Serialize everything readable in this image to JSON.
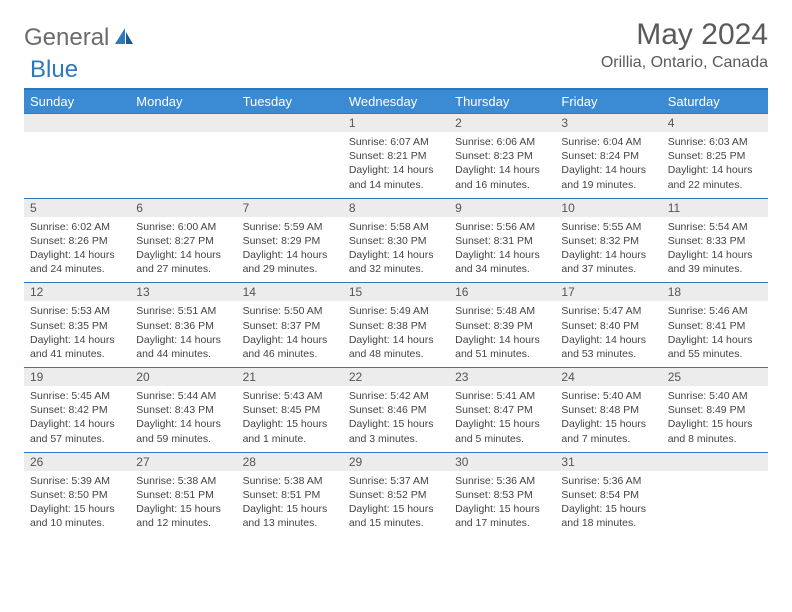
{
  "logo": {
    "part1": "General",
    "part2": "Blue"
  },
  "title": "May 2024",
  "location": "Orillia, Ontario, Canada",
  "colors": {
    "header_bg": "#3b8bd4",
    "border": "#2e78bd",
    "daynum_bg": "#ececec",
    "text": "#444444",
    "logo_gray": "#6b6b6b",
    "logo_blue": "#2e78bd"
  },
  "weekdays": [
    "Sunday",
    "Monday",
    "Tuesday",
    "Wednesday",
    "Thursday",
    "Friday",
    "Saturday"
  ],
  "weeks": [
    [
      {
        "day": "",
        "lines": []
      },
      {
        "day": "",
        "lines": []
      },
      {
        "day": "",
        "lines": []
      },
      {
        "day": "1",
        "lines": [
          "Sunrise: 6:07 AM",
          "Sunset: 8:21 PM",
          "Daylight: 14 hours",
          "and 14 minutes."
        ]
      },
      {
        "day": "2",
        "lines": [
          "Sunrise: 6:06 AM",
          "Sunset: 8:23 PM",
          "Daylight: 14 hours",
          "and 16 minutes."
        ]
      },
      {
        "day": "3",
        "lines": [
          "Sunrise: 6:04 AM",
          "Sunset: 8:24 PM",
          "Daylight: 14 hours",
          "and 19 minutes."
        ]
      },
      {
        "day": "4",
        "lines": [
          "Sunrise: 6:03 AM",
          "Sunset: 8:25 PM",
          "Daylight: 14 hours",
          "and 22 minutes."
        ]
      }
    ],
    [
      {
        "day": "5",
        "lines": [
          "Sunrise: 6:02 AM",
          "Sunset: 8:26 PM",
          "Daylight: 14 hours",
          "and 24 minutes."
        ]
      },
      {
        "day": "6",
        "lines": [
          "Sunrise: 6:00 AM",
          "Sunset: 8:27 PM",
          "Daylight: 14 hours",
          "and 27 minutes."
        ]
      },
      {
        "day": "7",
        "lines": [
          "Sunrise: 5:59 AM",
          "Sunset: 8:29 PM",
          "Daylight: 14 hours",
          "and 29 minutes."
        ]
      },
      {
        "day": "8",
        "lines": [
          "Sunrise: 5:58 AM",
          "Sunset: 8:30 PM",
          "Daylight: 14 hours",
          "and 32 minutes."
        ]
      },
      {
        "day": "9",
        "lines": [
          "Sunrise: 5:56 AM",
          "Sunset: 8:31 PM",
          "Daylight: 14 hours",
          "and 34 minutes."
        ]
      },
      {
        "day": "10",
        "lines": [
          "Sunrise: 5:55 AM",
          "Sunset: 8:32 PM",
          "Daylight: 14 hours",
          "and 37 minutes."
        ]
      },
      {
        "day": "11",
        "lines": [
          "Sunrise: 5:54 AM",
          "Sunset: 8:33 PM",
          "Daylight: 14 hours",
          "and 39 minutes."
        ]
      }
    ],
    [
      {
        "day": "12",
        "lines": [
          "Sunrise: 5:53 AM",
          "Sunset: 8:35 PM",
          "Daylight: 14 hours",
          "and 41 minutes."
        ]
      },
      {
        "day": "13",
        "lines": [
          "Sunrise: 5:51 AM",
          "Sunset: 8:36 PM",
          "Daylight: 14 hours",
          "and 44 minutes."
        ]
      },
      {
        "day": "14",
        "lines": [
          "Sunrise: 5:50 AM",
          "Sunset: 8:37 PM",
          "Daylight: 14 hours",
          "and 46 minutes."
        ]
      },
      {
        "day": "15",
        "lines": [
          "Sunrise: 5:49 AM",
          "Sunset: 8:38 PM",
          "Daylight: 14 hours",
          "and 48 minutes."
        ]
      },
      {
        "day": "16",
        "lines": [
          "Sunrise: 5:48 AM",
          "Sunset: 8:39 PM",
          "Daylight: 14 hours",
          "and 51 minutes."
        ]
      },
      {
        "day": "17",
        "lines": [
          "Sunrise: 5:47 AM",
          "Sunset: 8:40 PM",
          "Daylight: 14 hours",
          "and 53 minutes."
        ]
      },
      {
        "day": "18",
        "lines": [
          "Sunrise: 5:46 AM",
          "Sunset: 8:41 PM",
          "Daylight: 14 hours",
          "and 55 minutes."
        ]
      }
    ],
    [
      {
        "day": "19",
        "lines": [
          "Sunrise: 5:45 AM",
          "Sunset: 8:42 PM",
          "Daylight: 14 hours",
          "and 57 minutes."
        ]
      },
      {
        "day": "20",
        "lines": [
          "Sunrise: 5:44 AM",
          "Sunset: 8:43 PM",
          "Daylight: 14 hours",
          "and 59 minutes."
        ]
      },
      {
        "day": "21",
        "lines": [
          "Sunrise: 5:43 AM",
          "Sunset: 8:45 PM",
          "Daylight: 15 hours",
          "and 1 minute."
        ]
      },
      {
        "day": "22",
        "lines": [
          "Sunrise: 5:42 AM",
          "Sunset: 8:46 PM",
          "Daylight: 15 hours",
          "and 3 minutes."
        ]
      },
      {
        "day": "23",
        "lines": [
          "Sunrise: 5:41 AM",
          "Sunset: 8:47 PM",
          "Daylight: 15 hours",
          "and 5 minutes."
        ]
      },
      {
        "day": "24",
        "lines": [
          "Sunrise: 5:40 AM",
          "Sunset: 8:48 PM",
          "Daylight: 15 hours",
          "and 7 minutes."
        ]
      },
      {
        "day": "25",
        "lines": [
          "Sunrise: 5:40 AM",
          "Sunset: 8:49 PM",
          "Daylight: 15 hours",
          "and 8 minutes."
        ]
      }
    ],
    [
      {
        "day": "26",
        "lines": [
          "Sunrise: 5:39 AM",
          "Sunset: 8:50 PM",
          "Daylight: 15 hours",
          "and 10 minutes."
        ]
      },
      {
        "day": "27",
        "lines": [
          "Sunrise: 5:38 AM",
          "Sunset: 8:51 PM",
          "Daylight: 15 hours",
          "and 12 minutes."
        ]
      },
      {
        "day": "28",
        "lines": [
          "Sunrise: 5:38 AM",
          "Sunset: 8:51 PM",
          "Daylight: 15 hours",
          "and 13 minutes."
        ]
      },
      {
        "day": "29",
        "lines": [
          "Sunrise: 5:37 AM",
          "Sunset: 8:52 PM",
          "Daylight: 15 hours",
          "and 15 minutes."
        ]
      },
      {
        "day": "30",
        "lines": [
          "Sunrise: 5:36 AM",
          "Sunset: 8:53 PM",
          "Daylight: 15 hours",
          "and 17 minutes."
        ]
      },
      {
        "day": "31",
        "lines": [
          "Sunrise: 5:36 AM",
          "Sunset: 8:54 PM",
          "Daylight: 15 hours",
          "and 18 minutes."
        ]
      },
      {
        "day": "",
        "lines": []
      }
    ]
  ]
}
